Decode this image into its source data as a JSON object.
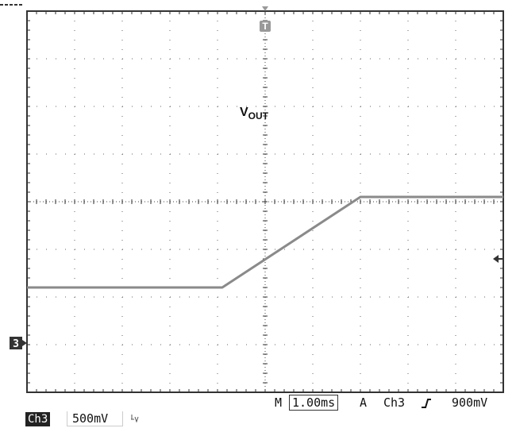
{
  "chart_data": {
    "type": "line",
    "title": "",
    "trace_label": "VOUT",
    "trace_label_main": "V",
    "trace_label_sub": "OUT",
    "channel": "Ch3",
    "volts_per_div": "500mV",
    "time_per_div": "1.00ms",
    "trigger": {
      "mode": "A",
      "source": "Ch3",
      "slope": "rising",
      "level": "900mV"
    },
    "grid": true,
    "x_divisions": 10,
    "y_divisions": 8,
    "xlim_ms": [
      -5,
      5
    ],
    "ylim_div": [
      -1.1,
      6.9
    ],
    "series": [
      {
        "name": "",
        "x_ms": [
          -5.0,
          -0.9,
          2.0,
          5.0
        ],
        "y_div": [
          1.1,
          1.1,
          3.0,
          3.0
        ]
      }
    ],
    "ground_marker": "3",
    "trigger_marker": "T"
  },
  "status": {
    "timebase_prefix": "M",
    "timebase": "1.00ms",
    "trigger_mode": "A",
    "trigger_source": "Ch3",
    "trigger_slope_icon": "rising-edge-icon",
    "trigger_level": "900mV"
  },
  "channel_bar": {
    "channel": "Ch3",
    "scale": "500mV",
    "bw_icon": "bandwidth-icon"
  }
}
